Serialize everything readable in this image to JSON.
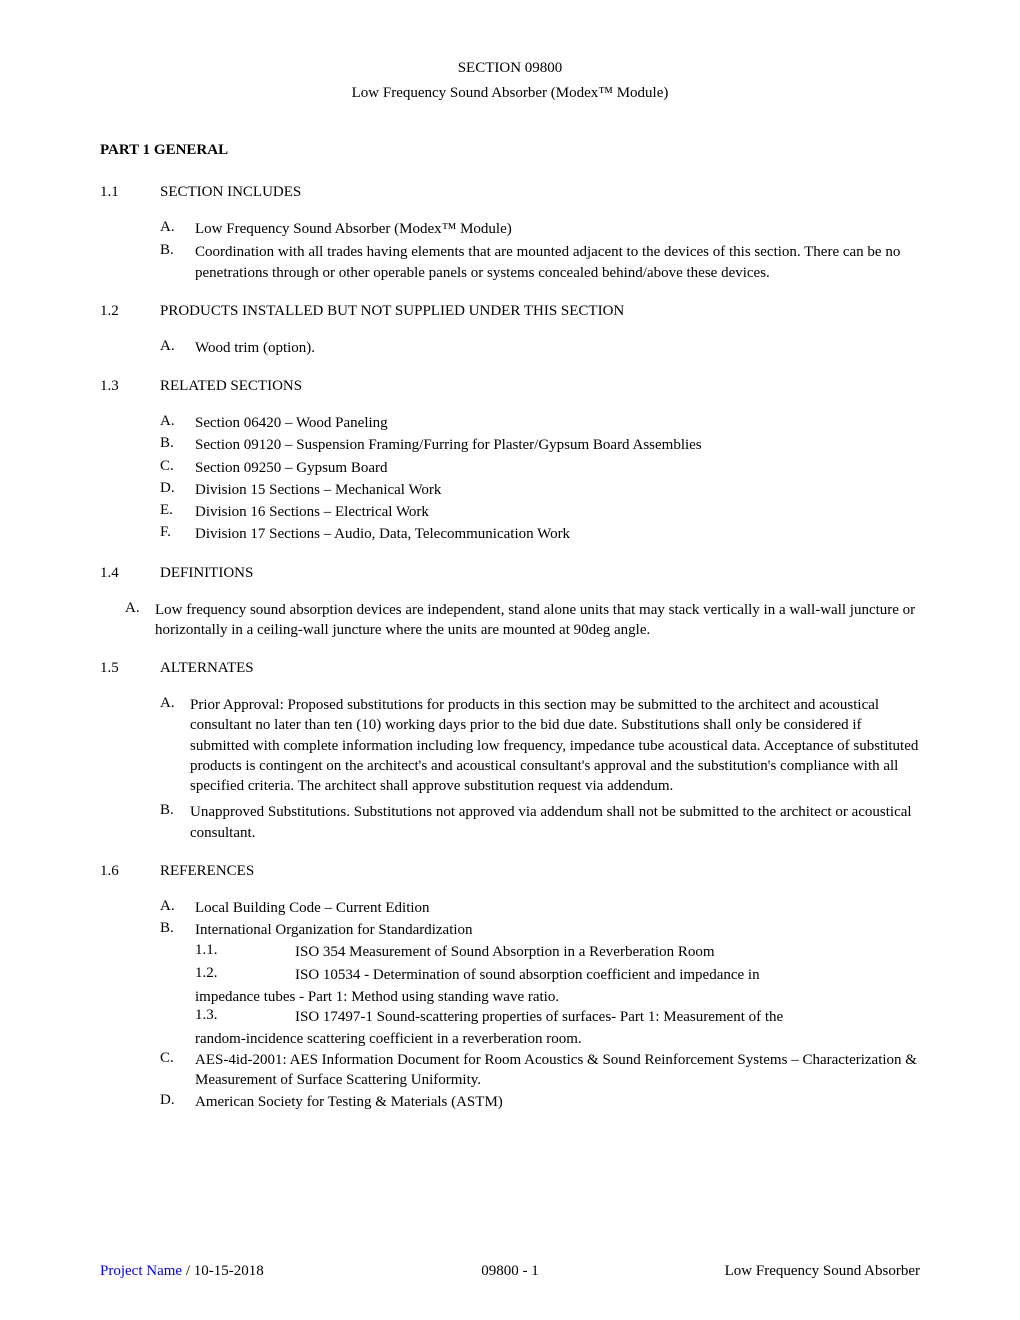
{
  "header": {
    "section_line": "SECTION 09800",
    "subtitle": "Low Frequency Sound Absorber (Modex™ Module)"
  },
  "part1": {
    "title": "PART 1 GENERAL"
  },
  "s1_1": {
    "num": "1.1",
    "title": "SECTION INCLUDES",
    "items": {
      "A": "Low Frequency Sound Absorber (Modex™ Module)",
      "B": "Coordination with all trades having elements that are mounted adjacent to the devices of this section. There can be no penetrations through or other operable panels or systems concealed behind/above these devices."
    }
  },
  "s1_2": {
    "num": "1.2",
    "title": "PRODUCTS INSTALLED BUT NOT SUPPLIED UNDER THIS SECTION",
    "items": {
      "A": "Wood trim (option)."
    }
  },
  "s1_3": {
    "num": "1.3",
    "title": "RELATED SECTIONS",
    "items": {
      "A": "Section 06420 – Wood Paneling",
      "B": "Section 09120 – Suspension Framing/Furring for Plaster/Gypsum Board Assemblies",
      "C": "Section 09250 – Gypsum Board",
      "D": "Division 15 Sections – Mechanical Work",
      "E": "Division 16 Sections – Electrical Work",
      "F": "Division 17 Sections – Audio, Data, Telecommunication Work"
    }
  },
  "s1_4": {
    "num": "1.4",
    "title": "DEFINITIONS",
    "items": {
      "A": "Low frequency sound absorption devices are independent, stand alone units that may stack vertically in a wall-wall juncture or horizontally in a ceiling-wall juncture where the units are mounted at 90deg angle."
    }
  },
  "s1_5": {
    "num": "1.5",
    "title": "ALTERNATES",
    "items": {
      "A": "Prior Approval: Proposed substitutions for products in this section may be submitted to the architect and acoustical consultant no later than ten (10) working days prior to the bid due date.  Substitutions shall only be considered if submitted with complete information including low frequency, impedance tube acoustical data.  Acceptance of substituted products is contingent on the architect's and acoustical consultant's approval and the substitution's compliance with all specified criteria.  The architect shall approve substitution request via addendum.",
      "B": "Unapproved Substitutions.  Substitutions not approved via addendum shall not be submitted to the architect or acoustical consultant."
    }
  },
  "s1_6": {
    "num": "1.6",
    "title": "REFERENCES",
    "items": {
      "A": "Local Building Code – Current Edition",
      "B": "International Organization for Standardization",
      "B_sub": {
        "1_1": {
          "num": "1.1.",
          "text": "ISO 354 Measurement of Sound Absorption in a Reverberation Room"
        },
        "1_2": {
          "num": "1.2.",
          "text": "ISO 10534 - Determination of sound absorption coefficient and impedance in",
          "cont": "impedance tubes - Part 1: Method using standing wave ratio."
        },
        "1_3": {
          "num": "1.3.",
          "text": "ISO 17497-1 Sound-scattering properties of surfaces- Part 1: Measurement of the",
          "cont": "random-incidence scattering coefficient in a reverberation room."
        }
      },
      "C": "AES-4id-2001: AES Information Document for Room Acoustics & Sound Reinforcement Systems – Characterization & Measurement of Surface Scattering Uniformity.",
      "D": "American Society for Testing & Materials (ASTM)"
    }
  },
  "footer": {
    "left_blue": "Project Name",
    "left_rest": " / 10-15-2018",
    "center": "09800 - 1",
    "right": "Low Frequency Sound Absorber"
  },
  "labels": {
    "A": "A.",
    "B": "B.",
    "C": "C.",
    "D": "D.",
    "E": "E.",
    "F": "F."
  }
}
